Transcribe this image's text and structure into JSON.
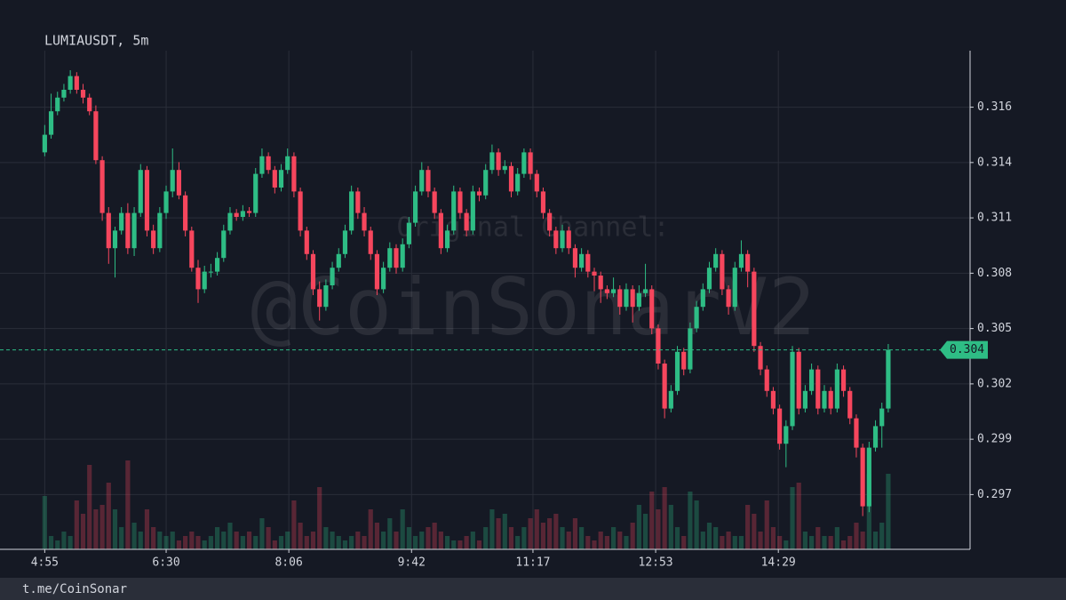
{
  "chart_data": {
    "type": "candlestick",
    "title": "LUMIAUSDT, 5m",
    "watermark": "@CoinSonarV2",
    "watermark_caption": "Original Channel:",
    "footer": "t.me/CoinSonar",
    "up_color": "#2ebd85",
    "down_color": "#f6465d",
    "grid": true,
    "xlim": [
      -35,
      724
    ],
    "xticks": [
      {
        "value": 0,
        "label": "4:55"
      },
      {
        "value": 95,
        "label": "6:30"
      },
      {
        "value": 191,
        "label": "8:06"
      },
      {
        "value": 287,
        "label": "9:42"
      },
      {
        "value": 382,
        "label": "11:17"
      },
      {
        "value": 478,
        "label": "12:53"
      },
      {
        "value": 574,
        "label": "14:29"
      }
    ],
    "ylim": [
      0.2938,
      0.3193
    ],
    "yticks": [
      {
        "value": 0.2966,
        "label": "0.297"
      },
      {
        "value": 0.29943,
        "label": "0.299"
      },
      {
        "value": 0.30226,
        "label": "0.302"
      },
      {
        "value": 0.30509,
        "label": "0.305"
      },
      {
        "value": 0.30792,
        "label": "0.308"
      },
      {
        "value": 0.31075,
        "label": "0.311"
      },
      {
        "value": 0.31358,
        "label": "0.314"
      },
      {
        "value": 0.31641,
        "label": "0.316"
      }
    ],
    "candles": [
      [
        0,
        0.3141,
        0.3155,
        0.3139,
        0.315,
        60
      ],
      [
        5,
        0.315,
        0.3171,
        0.3148,
        0.3162,
        15
      ],
      [
        10,
        0.3162,
        0.3172,
        0.316,
        0.3169,
        10
      ],
      [
        15,
        0.3169,
        0.3176,
        0.3167,
        0.3173,
        20
      ],
      [
        20,
        0.3173,
        0.3183,
        0.3171,
        0.318,
        15
      ],
      [
        25,
        0.318,
        0.3182,
        0.3171,
        0.3173,
        55
      ],
      [
        30,
        0.3173,
        0.3176,
        0.3166,
        0.3169,
        40
      ],
      [
        35,
        0.3169,
        0.3171,
        0.316,
        0.3162,
        95
      ],
      [
        40,
        0.3162,
        0.3165,
        0.3135,
        0.3137,
        45
      ],
      [
        45,
        0.3137,
        0.3139,
        0.3106,
        0.311,
        50
      ],
      [
        50,
        0.311,
        0.3113,
        0.3084,
        0.3092,
        75
      ],
      [
        55,
        0.3092,
        0.3103,
        0.3077,
        0.3101,
        45
      ],
      [
        60,
        0.3101,
        0.3113,
        0.3099,
        0.311,
        25
      ],
      [
        65,
        0.311,
        0.3115,
        0.3089,
        0.3092,
        100
      ],
      [
        70,
        0.3092,
        0.3113,
        0.3088,
        0.311,
        30
      ],
      [
        75,
        0.311,
        0.3135,
        0.3108,
        0.3132,
        20
      ],
      [
        80,
        0.3132,
        0.3134,
        0.3098,
        0.3101,
        45
      ],
      [
        85,
        0.3101,
        0.3104,
        0.3089,
        0.3092,
        25
      ],
      [
        90,
        0.3092,
        0.3113,
        0.309,
        0.311,
        20
      ],
      [
        95,
        0.311,
        0.3124,
        0.3107,
        0.3121,
        15
      ],
      [
        100,
        0.3121,
        0.3143,
        0.3118,
        0.3132,
        20
      ],
      [
        105,
        0.3132,
        0.3136,
        0.3117,
        0.3119,
        10
      ],
      [
        110,
        0.3119,
        0.3121,
        0.3098,
        0.3101,
        15
      ],
      [
        115,
        0.3101,
        0.3103,
        0.308,
        0.3082,
        20
      ],
      [
        120,
        0.3082,
        0.3086,
        0.3064,
        0.3071,
        15
      ],
      [
        125,
        0.3071,
        0.3083,
        0.3069,
        0.308,
        10
      ],
      [
        130,
        0.308,
        0.3084,
        0.3077,
        0.308,
        15
      ],
      [
        135,
        0.308,
        0.309,
        0.3078,
        0.3087,
        25
      ],
      [
        140,
        0.3087,
        0.3104,
        0.3085,
        0.3101,
        20
      ],
      [
        145,
        0.3101,
        0.3113,
        0.3099,
        0.311,
        30
      ],
      [
        150,
        0.311,
        0.3112,
        0.3106,
        0.3108,
        20
      ],
      [
        155,
        0.3108,
        0.3114,
        0.3106,
        0.3111,
        15
      ],
      [
        160,
        0.3111,
        0.3113,
        0.3108,
        0.311,
        20
      ],
      [
        165,
        0.311,
        0.3133,
        0.3108,
        0.313,
        15
      ],
      [
        170,
        0.313,
        0.3143,
        0.3128,
        0.3139,
        35
      ],
      [
        175,
        0.3139,
        0.3141,
        0.313,
        0.3132,
        25
      ],
      [
        180,
        0.3132,
        0.3134,
        0.312,
        0.3123,
        10
      ],
      [
        185,
        0.3123,
        0.3135,
        0.3121,
        0.3132,
        15
      ],
      [
        190,
        0.3132,
        0.3143,
        0.313,
        0.3139,
        20
      ],
      [
        195,
        0.3139,
        0.3141,
        0.3118,
        0.3121,
        55
      ],
      [
        200,
        0.3121,
        0.3123,
        0.3098,
        0.3101,
        30
      ],
      [
        205,
        0.3101,
        0.3103,
        0.3086,
        0.3089,
        15
      ],
      [
        210,
        0.3089,
        0.3091,
        0.3068,
        0.3071,
        20
      ],
      [
        215,
        0.3071,
        0.3075,
        0.3055,
        0.3062,
        70
      ],
      [
        220,
        0.3062,
        0.3076,
        0.306,
        0.3073,
        25
      ],
      [
        225,
        0.3073,
        0.3085,
        0.3071,
        0.3082,
        20
      ],
      [
        230,
        0.3082,
        0.3092,
        0.308,
        0.3089,
        15
      ],
      [
        235,
        0.3089,
        0.3104,
        0.3087,
        0.3101,
        10
      ],
      [
        240,
        0.3101,
        0.3124,
        0.3099,
        0.3121,
        15
      ],
      [
        245,
        0.3121,
        0.3123,
        0.3107,
        0.311,
        20
      ],
      [
        250,
        0.311,
        0.3113,
        0.3098,
        0.3101,
        15
      ],
      [
        255,
        0.3101,
        0.3103,
        0.3086,
        0.3089,
        45
      ],
      [
        260,
        0.3089,
        0.3091,
        0.3068,
        0.3071,
        30
      ],
      [
        265,
        0.3071,
        0.3085,
        0.3069,
        0.3082,
        20
      ],
      [
        270,
        0.3082,
        0.3095,
        0.308,
        0.3092,
        35
      ],
      [
        275,
        0.3092,
        0.3094,
        0.3079,
        0.3082,
        20
      ],
      [
        280,
        0.3082,
        0.3097,
        0.308,
        0.3094,
        45
      ],
      [
        285,
        0.3094,
        0.3108,
        0.3092,
        0.3105,
        25
      ],
      [
        290,
        0.3105,
        0.3124,
        0.3103,
        0.3121,
        15
      ],
      [
        295,
        0.3121,
        0.3136,
        0.3119,
        0.3132,
        20
      ],
      [
        300,
        0.3132,
        0.3134,
        0.3118,
        0.3121,
        25
      ],
      [
        305,
        0.3121,
        0.3123,
        0.3107,
        0.311,
        30
      ],
      [
        310,
        0.311,
        0.3112,
        0.3089,
        0.3092,
        20
      ],
      [
        315,
        0.3092,
        0.3104,
        0.309,
        0.3101,
        15
      ],
      [
        320,
        0.3101,
        0.3124,
        0.3099,
        0.3121,
        10
      ],
      [
        325,
        0.3121,
        0.3123,
        0.3107,
        0.311,
        10
      ],
      [
        330,
        0.311,
        0.3112,
        0.3098,
        0.3101,
        15
      ],
      [
        335,
        0.3101,
        0.3124,
        0.3099,
        0.3121,
        20
      ],
      [
        340,
        0.3121,
        0.3123,
        0.3116,
        0.3119,
        10
      ],
      [
        345,
        0.3119,
        0.3135,
        0.3117,
        0.3132,
        25
      ],
      [
        350,
        0.3132,
        0.3145,
        0.313,
        0.3141,
        45
      ],
      [
        355,
        0.3141,
        0.3143,
        0.3129,
        0.3132,
        35
      ],
      [
        360,
        0.3132,
        0.3137,
        0.313,
        0.3134,
        40
      ],
      [
        365,
        0.3134,
        0.3136,
        0.3118,
        0.3121,
        25
      ],
      [
        370,
        0.3121,
        0.3133,
        0.3119,
        0.313,
        15
      ],
      [
        375,
        0.313,
        0.3143,
        0.3128,
        0.3141,
        25
      ],
      [
        380,
        0.3141,
        0.3143,
        0.3127,
        0.313,
        35
      ],
      [
        385,
        0.313,
        0.3132,
        0.3118,
        0.3121,
        45
      ],
      [
        390,
        0.3121,
        0.3123,
        0.3107,
        0.311,
        30
      ],
      [
        395,
        0.311,
        0.3112,
        0.3098,
        0.3101,
        35
      ],
      [
        400,
        0.3101,
        0.3103,
        0.3089,
        0.3092,
        40
      ],
      [
        405,
        0.3092,
        0.3104,
        0.309,
        0.3101,
        25
      ],
      [
        410,
        0.3101,
        0.3103,
        0.3089,
        0.3092,
        20
      ],
      [
        415,
        0.3092,
        0.3094,
        0.3077,
        0.3082,
        35
      ],
      [
        420,
        0.3082,
        0.3092,
        0.308,
        0.3089,
        25
      ],
      [
        425,
        0.3089,
        0.3091,
        0.3077,
        0.308,
        15
      ],
      [
        430,
        0.308,
        0.3082,
        0.307,
        0.3078,
        10
      ],
      [
        435,
        0.3078,
        0.308,
        0.3064,
        0.3071,
        20
      ],
      [
        440,
        0.3071,
        0.3073,
        0.3066,
        0.3069,
        15
      ],
      [
        445,
        0.3069,
        0.3077,
        0.3067,
        0.3071,
        25
      ],
      [
        450,
        0.3071,
        0.3073,
        0.3058,
        0.3062,
        20
      ],
      [
        455,
        0.3062,
        0.3074,
        0.306,
        0.3071,
        15
      ],
      [
        460,
        0.3071,
        0.3073,
        0.3054,
        0.3062,
        30
      ],
      [
        465,
        0.3062,
        0.3073,
        0.306,
        0.3069,
        50
      ],
      [
        470,
        0.3069,
        0.3084,
        0.3067,
        0.3071,
        40
      ],
      [
        475,
        0.3071,
        0.3073,
        0.3048,
        0.3051,
        65
      ],
      [
        480,
        0.3051,
        0.3053,
        0.303,
        0.3033,
        45
      ],
      [
        485,
        0.3033,
        0.3035,
        0.3005,
        0.301,
        70
      ],
      [
        490,
        0.301,
        0.3022,
        0.3008,
        0.3019,
        50
      ],
      [
        495,
        0.3019,
        0.3042,
        0.3017,
        0.3039,
        25
      ],
      [
        500,
        0.3039,
        0.3041,
        0.3027,
        0.303,
        15
      ],
      [
        505,
        0.303,
        0.3054,
        0.3028,
        0.3051,
        65
      ],
      [
        510,
        0.3051,
        0.3065,
        0.3049,
        0.3062,
        55
      ],
      [
        515,
        0.3062,
        0.3074,
        0.306,
        0.3071,
        20
      ],
      [
        520,
        0.3071,
        0.3085,
        0.3069,
        0.3082,
        30
      ],
      [
        525,
        0.3082,
        0.3092,
        0.308,
        0.3089,
        25
      ],
      [
        530,
        0.3089,
        0.3091,
        0.3068,
        0.3071,
        15
      ],
      [
        535,
        0.3071,
        0.3073,
        0.3058,
        0.3062,
        20
      ],
      [
        540,
        0.3062,
        0.3085,
        0.306,
        0.3082,
        15
      ],
      [
        545,
        0.3082,
        0.3096,
        0.308,
        0.3089,
        15
      ],
      [
        550,
        0.3089,
        0.3091,
        0.3072,
        0.308,
        50
      ],
      [
        555,
        0.308,
        0.3082,
        0.3039,
        0.3042,
        40
      ],
      [
        560,
        0.3042,
        0.3044,
        0.3027,
        0.303,
        20
      ],
      [
        565,
        0.303,
        0.3032,
        0.3016,
        0.3019,
        55
      ],
      [
        570,
        0.3019,
        0.3021,
        0.3007,
        0.301,
        25
      ],
      [
        575,
        0.301,
        0.3012,
        0.2989,
        0.2992,
        15
      ],
      [
        580,
        0.2992,
        0.3004,
        0.298,
        0.3001,
        10
      ],
      [
        585,
        0.3001,
        0.3042,
        0.2999,
        0.3039,
        70
      ],
      [
        590,
        0.3039,
        0.3041,
        0.3007,
        0.301,
        75
      ],
      [
        595,
        0.301,
        0.3022,
        0.3008,
        0.3019,
        20
      ],
      [
        600,
        0.3019,
        0.3033,
        0.3017,
        0.303,
        15
      ],
      [
        605,
        0.303,
        0.3032,
        0.3007,
        0.301,
        25
      ],
      [
        610,
        0.301,
        0.3022,
        0.3008,
        0.3019,
        15
      ],
      [
        615,
        0.3019,
        0.3021,
        0.3007,
        0.301,
        15
      ],
      [
        620,
        0.301,
        0.3033,
        0.3008,
        0.303,
        25
      ],
      [
        625,
        0.303,
        0.3032,
        0.3016,
        0.3019,
        10
      ],
      [
        630,
        0.3019,
        0.3021,
        0.3002,
        0.3005,
        15
      ],
      [
        635,
        0.3005,
        0.3007,
        0.2985,
        0.299,
        30
      ],
      [
        640,
        0.299,
        0.2992,
        0.2955,
        0.296,
        20
      ],
      [
        645,
        0.296,
        0.2993,
        0.2957,
        0.299,
        85
      ],
      [
        650,
        0.299,
        0.3004,
        0.2988,
        0.3001,
        20
      ],
      [
        655,
        0.3001,
        0.3013,
        0.299,
        0.301,
        30
      ],
      [
        660,
        0.301,
        0.3043,
        0.3008,
        0.304,
        85
      ]
    ]
  }
}
